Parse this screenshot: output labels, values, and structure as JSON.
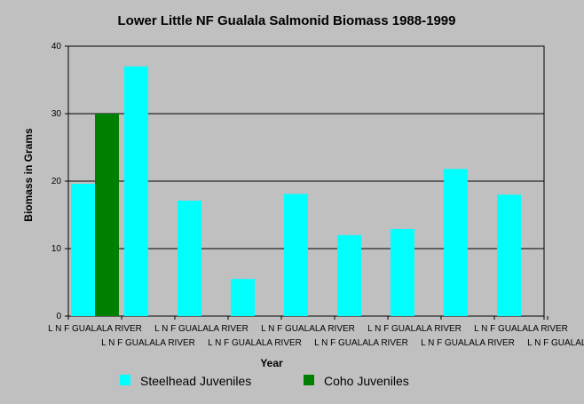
{
  "chart_data": {
    "type": "bar",
    "title": "Lower Little NF Gualala Salmonid Biomass 1988-1999",
    "xlabel": "Year",
    "ylabel": "Biomass in Grams",
    "ylim": [
      0,
      40
    ],
    "yticks": [
      0,
      10,
      20,
      30,
      40
    ],
    "grid": true,
    "legend_position": "bottom",
    "categories": [
      "L N F GUALALA RIVER",
      "L N F GUALALA RIVER",
      "L N F GUALALA RIVER",
      "L N F GUALALA RIVER",
      "L N F GUALALA RIVER",
      "L N F GUALALA RIVER",
      "L N F GUALALA RIVER",
      "L N F GUALALA RIVER",
      "L N F GUALALA RIVER",
      "L N F GUALALA RIVER"
    ],
    "series": [
      {
        "name": "Steelhead Juveniles",
        "color": "#00ffff",
        "values": [
          19.6,
          37.0,
          17.1,
          5.5,
          18.1,
          12.0,
          12.9,
          21.8,
          18.0,
          null
        ]
      },
      {
        "name": "Coho Juveniles",
        "color": "#008000",
        "values": [
          30.0,
          null,
          null,
          null,
          null,
          null,
          null,
          null,
          null,
          null
        ]
      }
    ]
  }
}
